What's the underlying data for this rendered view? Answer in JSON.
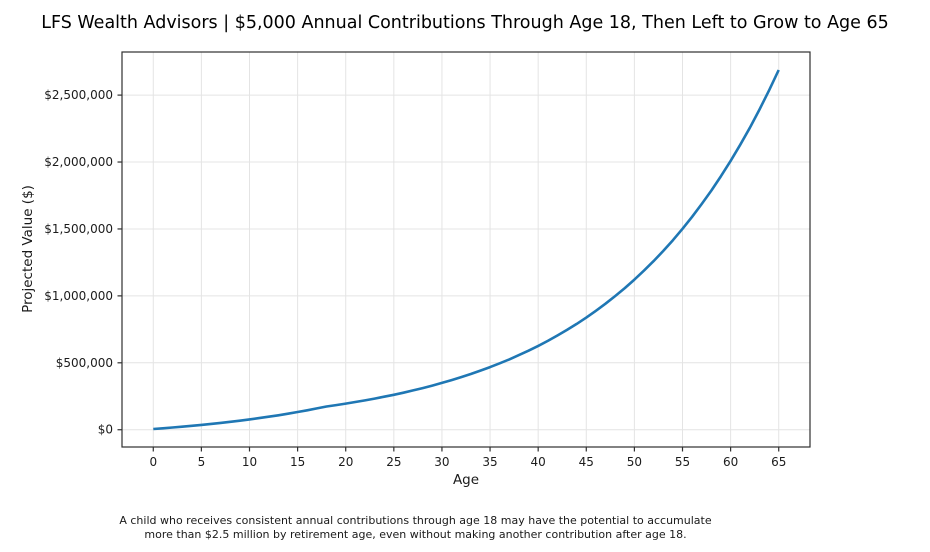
{
  "title": "LFS Wealth Advisors | $5,000 Annual Contributions Through Age 18, Then Left to Grow to Age 65",
  "caption": {
    "line1": "A child who receives consistent annual contributions through age 18 may have the potential to accumulate",
    "line2": "more than $2.5 million by retirement age, even without making another contribution after age 18."
  },
  "colors": {
    "line": "#1f77b4",
    "grid": "#e4e4e4",
    "spine": "#303030",
    "tick_text": "#1c1c1c",
    "background": "#ffffff"
  },
  "chart_data": {
    "type": "line",
    "title": "LFS Wealth Advisors | $5,000 Annual Contributions Through Age 18, Then Left to Grow to Age 65",
    "xlabel": "Age",
    "ylabel": "Projected Value ($)",
    "grid": true,
    "legend": "none",
    "xlim": [
      -3.25,
      68.25
    ],
    "ylim": [
      -129000,
      2822000
    ],
    "x_ticks": [
      {
        "value": 0,
        "label": "0"
      },
      {
        "value": 5,
        "label": "5"
      },
      {
        "value": 10,
        "label": "10"
      },
      {
        "value": 15,
        "label": "15"
      },
      {
        "value": 20,
        "label": "20"
      },
      {
        "value": 25,
        "label": "25"
      },
      {
        "value": 30,
        "label": "30"
      },
      {
        "value": 35,
        "label": "35"
      },
      {
        "value": 40,
        "label": "40"
      },
      {
        "value": 45,
        "label": "45"
      },
      {
        "value": 50,
        "label": "50"
      },
      {
        "value": 55,
        "label": "55"
      },
      {
        "value": 60,
        "label": "60"
      },
      {
        "value": 65,
        "label": "65"
      }
    ],
    "y_ticks": [
      {
        "value": 0,
        "label": "$0"
      },
      {
        "value": 500000,
        "label": "$500,000"
      },
      {
        "value": 1000000,
        "label": "$1,000,000"
      },
      {
        "value": 1500000,
        "label": "$1,500,000"
      },
      {
        "value": 2000000,
        "label": "$2,000,000"
      },
      {
        "value": 2500000,
        "label": "$2,500,000"
      }
    ],
    "x": [
      0,
      1,
      2,
      3,
      4,
      5,
      6,
      7,
      8,
      9,
      10,
      11,
      12,
      13,
      14,
      15,
      16,
      17,
      18,
      19,
      20,
      21,
      22,
      23,
      24,
      25,
      26,
      27,
      28,
      29,
      30,
      31,
      32,
      33,
      34,
      35,
      36,
      37,
      38,
      39,
      40,
      41,
      42,
      43,
      44,
      45,
      46,
      47,
      48,
      49,
      50,
      51,
      52,
      53,
      54,
      55,
      56,
      57,
      58,
      59,
      60,
      61,
      62,
      63,
      64,
      65
    ],
    "series": [
      {
        "name": "Projected Value",
        "color": "#1f77b4",
        "values": [
          5148,
          10604,
          16388,
          22520,
          29018,
          35908,
          43210,
          50950,
          59155,
          67852,
          77071,
          86843,
          97202,
          108181,
          119820,
          132157,
          145234,
          159096,
          173790,
          184217,
          195270,
          206986,
          219406,
          232570,
          246524,
          261315,
          276994,
          293614,
          311231,
          329905,
          349700,
          370682,
          392922,
          416498,
          441488,
          467977,
          496056,
          525819,
          557368,
          590810,
          626259,
          663834,
          703664,
          745884,
          790637,
          838075,
          888360,
          941662,
          998161,
          1058051,
          1121534,
          1188826,
          1260155,
          1335764,
          1415910,
          1500865,
          1590917,
          1686372,
          1787555,
          1894807,
          2008495,
          2129005,
          2256745,
          2392149,
          2535678,
          2687818
        ]
      }
    ]
  }
}
